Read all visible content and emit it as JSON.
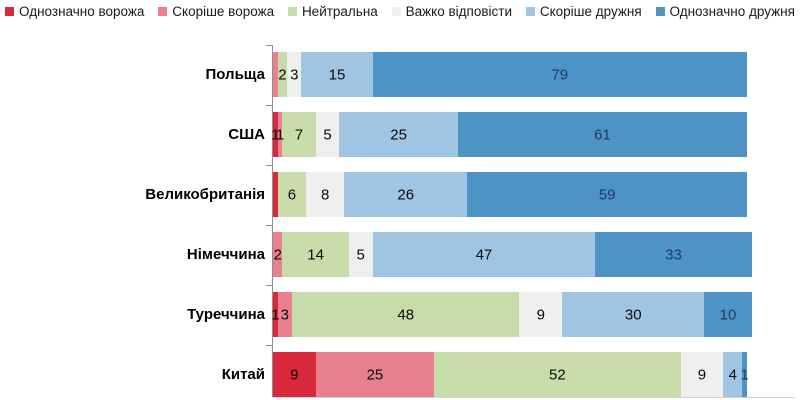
{
  "chart_data": {
    "type": "bar",
    "orientation": "horizontal",
    "stacked": true,
    "unit": "percent",
    "title": "",
    "xlabel": "",
    "ylabel": "",
    "xlim": [
      0,
      100
    ],
    "legend_position": "top",
    "categories": [
      "Польща",
      "США",
      "Великобританія",
      "Німеччина",
      "Туреччина",
      "Китай"
    ],
    "series": [
      {
        "name": "Однозначно ворожа",
        "color": "#D7293B",
        "values": [
          0,
          1,
          1,
          0,
          1,
          9
        ],
        "labels": [
          "",
          "1",
          "",
          "",
          "1",
          "9"
        ],
        "label_color": "#0b0b0b"
      },
      {
        "name": "Скоріше ворожа",
        "color": "#E8808F",
        "values": [
          1,
          1,
          0,
          2,
          3,
          25
        ],
        "labels": [
          "",
          "1",
          "",
          "2",
          "3",
          "25"
        ],
        "label_color": "#0b0b0b"
      },
      {
        "name": "Нейтральна",
        "color": "#C8DCA9",
        "values": [
          2,
          7,
          6,
          14,
          48,
          52
        ],
        "labels": [
          "2",
          "7",
          "6",
          "14",
          "48",
          "52"
        ],
        "label_color": "#0b0b0b"
      },
      {
        "name": "Важко відповісти",
        "color": "#EFEFED",
        "values": [
          3,
          5,
          8,
          5,
          9,
          9
        ],
        "labels": [
          "3",
          "5",
          "8",
          "5",
          "9",
          "9"
        ],
        "label_color": "#0b0b0b"
      },
      {
        "name": "Скоріше дружня",
        "color": "#9FC5E2",
        "values": [
          15,
          25,
          26,
          47,
          30,
          4
        ],
        "labels": [
          "15",
          "25",
          "26",
          "47",
          "30",
          "4"
        ],
        "label_color": "#0b0b0b"
      },
      {
        "name": "Однозначно дружня",
        "color": "#4D93C6",
        "values": [
          79,
          61,
          59,
          33,
          10,
          1
        ],
        "labels": [
          "79",
          "61",
          "59",
          "33",
          "10",
          "1"
        ],
        "label_color": "#1E3A5F"
      }
    ],
    "styles": {
      "axis_color": "#909090",
      "baseline_color": "#d0d0d0"
    }
  }
}
